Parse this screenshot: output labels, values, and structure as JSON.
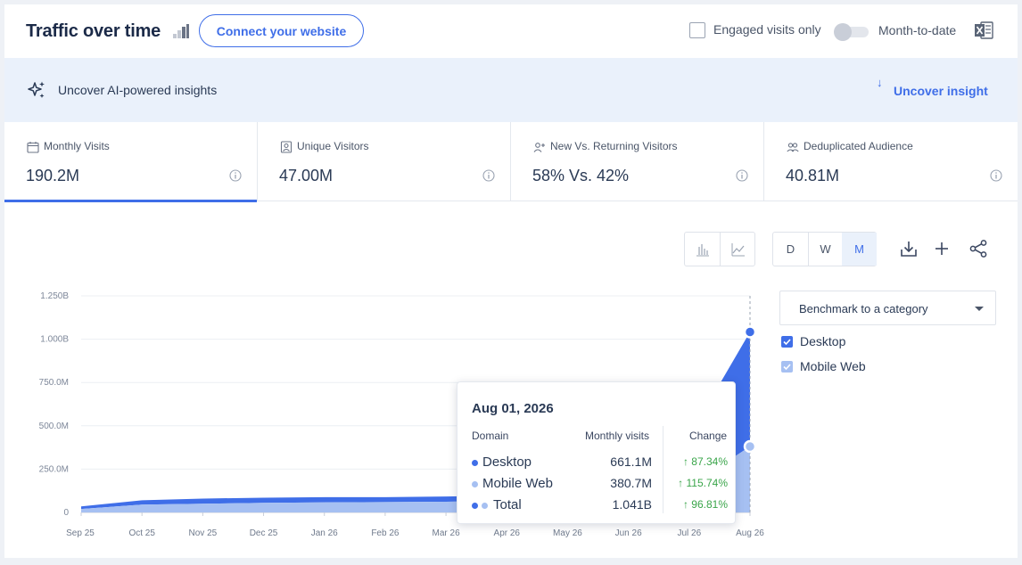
{
  "header": {
    "title": "Traffic over time",
    "connect_label": "Connect your website",
    "engaged_label": "Engaged visits only",
    "mtd_label": "Month-to-date"
  },
  "ai": {
    "text": "Uncover AI-powered insights",
    "button_label": "Uncover insight"
  },
  "metrics": [
    {
      "label": "Monthly Visits",
      "value": "190.2M",
      "icon": "calendar-icon"
    },
    {
      "label": "Unique Visitors",
      "value": "47.00M",
      "icon": "person-badge-icon"
    },
    {
      "label": "New Vs. Returning Visitors",
      "value": "58% Vs. 42%",
      "icon": "user-plus-icon"
    },
    {
      "label": "Deduplicated Audience",
      "value": "40.81M",
      "icon": "users-icon"
    }
  ],
  "toolbar": {
    "granularity": [
      "D",
      "W",
      "M"
    ],
    "selected": "M"
  },
  "benchmark": {
    "label": "Benchmark to a category"
  },
  "legend": [
    {
      "label": "Desktop",
      "color": "#3f6ee8",
      "checked": true
    },
    {
      "label": "Mobile Web",
      "color": "#a6c0f2",
      "checked": true
    }
  ],
  "tooltip": {
    "date": "Aug 01, 2026",
    "col_domain": "Domain",
    "col_visits": "Monthly visits",
    "col_change": "Change",
    "rows": [
      {
        "name": "Desktop",
        "value": "661.1M",
        "change": "87.34%"
      },
      {
        "name": "Mobile Web",
        "value": "380.7M",
        "change": "115.74%"
      },
      {
        "name": "Total",
        "value": "1.041B",
        "change": "96.81%"
      }
    ]
  },
  "colors": {
    "accent": "#3f6ee8",
    "desktop": "#3f6ee8",
    "mobile": "#a6c0f2",
    "positive": "#3aa54a"
  },
  "chart_data": {
    "type": "area",
    "x": [
      "Sep 25",
      "Oct 25",
      "Nov 25",
      "Dec 25",
      "Jan 26",
      "Feb 26",
      "Mar 26",
      "Apr 26",
      "May 26",
      "Jun 26",
      "Jul 26",
      "Aug 26"
    ],
    "y_ticks": [
      "0",
      "250.0M",
      "500.0M",
      "750.0M",
      "1.000B",
      "1.250B"
    ],
    "ylim": [
      0,
      1250
    ],
    "stacked": true,
    "series": [
      {
        "name": "Mobile Web",
        "values": [
          20,
          45,
          50,
          55,
          58,
          60,
          62,
          65,
          70,
          85,
          150,
          380.7
        ]
      },
      {
        "name": "Desktop",
        "values": [
          15,
          25,
          30,
          30,
          30,
          28,
          30,
          32,
          40,
          70,
          290,
          661.1
        ]
      }
    ]
  }
}
